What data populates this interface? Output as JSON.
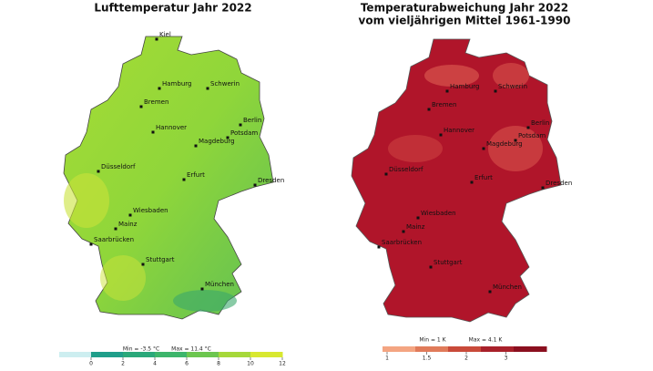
{
  "maps": [
    {
      "title": [
        "Lufttemperatur Jahr 2022"
      ],
      "cities": [
        "Kiel",
        "Hamburg",
        "Schwerin",
        "Bremen",
        "Berlin",
        "Hannover",
        "Potsdam",
        "Magdeburg",
        "Düsseldorf",
        "Erfurt",
        "Dresden",
        "Wiesbaden",
        "Mainz",
        "Saarbrücken",
        "Stuttgart",
        "München"
      ],
      "min": "Min = -3.5 °C",
      "max": "Max = 11.4 °C",
      "legend": {
        "ticks": [
          0,
          2,
          4,
          6,
          8,
          10,
          12
        ],
        "colors": [
          "#cdeef0",
          "#1f9e8a",
          "#2aa87a",
          "#3db56b",
          "#6cc64f",
          "#a6d83a",
          "#d8e830"
        ]
      }
    },
    {
      "title": [
        "Temperaturabweichung Jahr 2022",
        "vom vieljährigen Mittel 1961-1990"
      ],
      "cities": [
        "Hamburg",
        "Schwerin",
        "Bremen",
        "Berlin",
        "Hannover",
        "Potsdam",
        "Magdeburg",
        "Düsseldorf",
        "Erfurt",
        "Dresden",
        "Wiesbaden",
        "Mainz",
        "Saarbrücken",
        "Stuttgart",
        "München"
      ],
      "min": "Min = 1 K",
      "max": "Max = 4.1 K",
      "legend": {
        "ticks": [
          1,
          1.5,
          2,
          3
        ],
        "colors": [
          "#f4a582",
          "#e07b5a",
          "#c94a3a",
          "#a8202a",
          "#8b0f1f"
        ]
      }
    }
  ]
}
